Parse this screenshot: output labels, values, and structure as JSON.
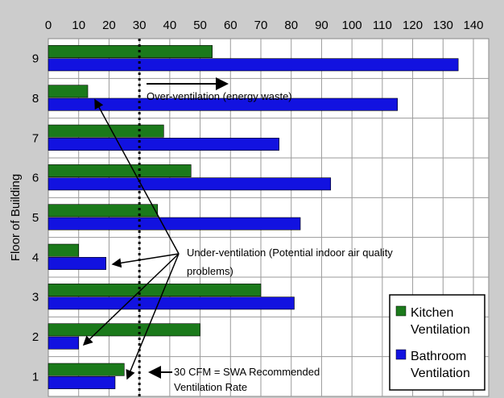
{
  "chart_data": {
    "type": "bar",
    "orientation": "horizontal",
    "categories": [
      "9",
      "8",
      "7",
      "6",
      "5",
      "4",
      "3",
      "2",
      "1"
    ],
    "series": [
      {
        "name": "Kitchen Ventilation",
        "color": "#1b7a1b",
        "values": [
          54,
          13,
          38,
          47,
          36,
          10,
          70,
          50,
          25
        ]
      },
      {
        "name": "Bathroom Ventilation",
        "color": "#1212e0",
        "values": [
          135,
          115,
          76,
          93,
          83,
          19,
          81,
          10,
          22
        ]
      }
    ],
    "xlim": [
      0,
      140
    ],
    "x_ticks": [
      "0",
      "10",
      "20",
      "30",
      "40",
      "50",
      "60",
      "70",
      "80",
      "90",
      "100",
      "110",
      "120",
      "130",
      "140"
    ],
    "ylabel": "Floor of Building",
    "xlabel": "",
    "reference_line": {
      "value": 30,
      "style": "dotted"
    },
    "annotations": {
      "over": "Over-ventilation (energy waste)",
      "under_line1": "Under-ventilation (Potential indoor air quality",
      "under_line2": "problems)",
      "ref_line1": "30 CFM = SWA Recommended",
      "ref_line2": "Ventilation Rate"
    },
    "legend_position": "bottom-right",
    "legend": {
      "kitchen_line1": "Kitchen",
      "kitchen_line2": "Ventilation",
      "bathroom_line1": "Bathroom",
      "bathroom_line2": "Ventilation"
    },
    "grid": true,
    "colors": {
      "plot_background": "#ffffff",
      "frame_background": "#cccccc",
      "grid": "#9a9a9a"
    }
  }
}
